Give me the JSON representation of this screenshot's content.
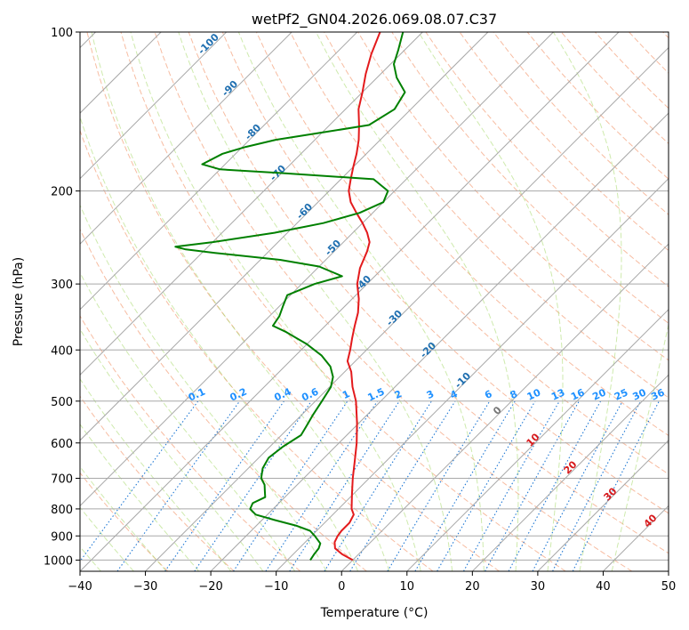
{
  "chart_data": {
    "type": "line",
    "title": "wetPf2_GN04.2026.069.08.07.C37",
    "xlabel": "Temperature (°C)",
    "ylabel": "Pressure (hPa)",
    "xlim": [
      -40,
      50
    ],
    "ylim": [
      1050,
      100
    ],
    "y_scale": "log",
    "x_ticks": [
      "−40",
      "−30",
      "−20",
      "−10",
      "0",
      "10",
      "20",
      "30",
      "40",
      "50"
    ],
    "y_ticks": [
      "1000",
      "900",
      "800",
      "700",
      "600",
      "500",
      "400",
      "300",
      "200",
      "100"
    ],
    "skew": 45,
    "grid": true,
    "series": [
      {
        "color": "#e31a1c",
        "points": [
          [
            1000,
            0.0
          ],
          [
            975,
            -2.5
          ],
          [
            950,
            -4.5
          ],
          [
            925,
            -5.5
          ],
          [
            900,
            -6.0
          ],
          [
            880,
            -6.2
          ],
          [
            850,
            -6.2
          ],
          [
            820,
            -6.8
          ],
          [
            800,
            -8.0
          ],
          [
            750,
            -10.2
          ],
          [
            700,
            -12.5
          ],
          [
            650,
            -14.8
          ],
          [
            600,
            -17.3
          ],
          [
            550,
            -20.3
          ],
          [
            500,
            -23.8
          ],
          [
            470,
            -26.5
          ],
          [
            440,
            -29.0
          ],
          [
            420,
            -31.2
          ],
          [
            400,
            -32.5
          ],
          [
            380,
            -34.0
          ],
          [
            360,
            -35.5
          ],
          [
            340,
            -37.0
          ],
          [
            320,
            -39.0
          ],
          [
            300,
            -41.5
          ],
          [
            280,
            -43.5
          ],
          [
            260,
            -45.0
          ],
          [
            250,
            -46.0
          ],
          [
            240,
            -47.8
          ],
          [
            230,
            -50.0
          ],
          [
            220,
            -52.5
          ],
          [
            210,
            -55.0
          ],
          [
            200,
            -57.0
          ],
          [
            190,
            -58.5
          ],
          [
            180,
            -60.0
          ],
          [
            170,
            -61.5
          ],
          [
            160,
            -63.3
          ],
          [
            150,
            -65.5
          ],
          [
            140,
            -68.0
          ],
          [
            130,
            -70.0
          ],
          [
            120,
            -72.3
          ],
          [
            110,
            -74.5
          ],
          [
            100,
            -76.5
          ]
        ]
      },
      {
        "color": "#008000",
        "points": [
          [
            1000,
            -6.5
          ],
          [
            975,
            -6.8
          ],
          [
            950,
            -7.0
          ],
          [
            930,
            -7.5
          ],
          [
            900,
            -9.5
          ],
          [
            880,
            -11.0
          ],
          [
            860,
            -14.0
          ],
          [
            840,
            -18.0
          ],
          [
            820,
            -21.8
          ],
          [
            800,
            -23.5
          ],
          [
            780,
            -24.0
          ],
          [
            760,
            -23.0
          ],
          [
            740,
            -24.0
          ],
          [
            720,
            -25.0
          ],
          [
            700,
            -26.5
          ],
          [
            670,
            -27.8
          ],
          [
            640,
            -28.5
          ],
          [
            610,
            -28.0
          ],
          [
            580,
            -27.0
          ],
          [
            560,
            -27.5
          ],
          [
            530,
            -28.3
          ],
          [
            500,
            -29.0
          ],
          [
            470,
            -29.8
          ],
          [
            450,
            -31.0
          ],
          [
            430,
            -33.0
          ],
          [
            410,
            -36.0
          ],
          [
            390,
            -40.0
          ],
          [
            370,
            -45.0
          ],
          [
            360,
            -48.0
          ],
          [
            345,
            -48.5
          ],
          [
            330,
            -49.5
          ],
          [
            315,
            -50.5
          ],
          [
            300,
            -48.0
          ],
          [
            290,
            -45.0
          ],
          [
            278,
            -50.0
          ],
          [
            270,
            -57.0
          ],
          [
            262,
            -68.0
          ],
          [
            258,
            -73.0
          ],
          [
            255,
            -75.0
          ],
          [
            250,
            -70.0
          ],
          [
            240,
            -62.0
          ],
          [
            230,
            -56.0
          ],
          [
            220,
            -52.0
          ],
          [
            210,
            -50.0
          ],
          [
            200,
            -51.0
          ],
          [
            190,
            -55.0
          ],
          [
            185,
            -70.0
          ],
          [
            182,
            -80.0
          ],
          [
            178,
            -83.5
          ],
          [
            170,
            -82.0
          ],
          [
            165,
            -79.5
          ],
          [
            160,
            -76.0
          ],
          [
            155,
            -70.0
          ],
          [
            150,
            -64.0
          ],
          [
            140,
            -62.5
          ],
          [
            130,
            -63.5
          ],
          [
            122,
            -67.0
          ],
          [
            115,
            -69.5
          ],
          [
            108,
            -71.0
          ],
          [
            100,
            -73.0
          ]
        ]
      }
    ],
    "dry_adiabat_labels": [
      "-100",
      "-90",
      "-80",
      "-70",
      "-60",
      "-50",
      "-40",
      "-30",
      "-20",
      "-10",
      "0",
      "10",
      "20",
      "30",
      "40"
    ],
    "mixing_ratio_labels": [
      "0.1",
      "0.2",
      "0.4",
      "0.6",
      "1",
      "1.5",
      "2",
      "3",
      "4",
      "6",
      "8",
      "10",
      "13",
      "16",
      "20",
      "25",
      "30",
      "36"
    ],
    "colors": {
      "temperature": "#e31a1c",
      "dewpoint": "#008000",
      "isotherm": "#a8a8a8",
      "dry_adiabat": "#f4a582",
      "moist_adiabat": "#a6d96a",
      "mixing_ratio": "#1f78d4",
      "dry_label": "#1f6fb0",
      "warm_label": "#d7191c",
      "zero_label": "#777777",
      "mixing_label": "#1e90ff"
    }
  }
}
